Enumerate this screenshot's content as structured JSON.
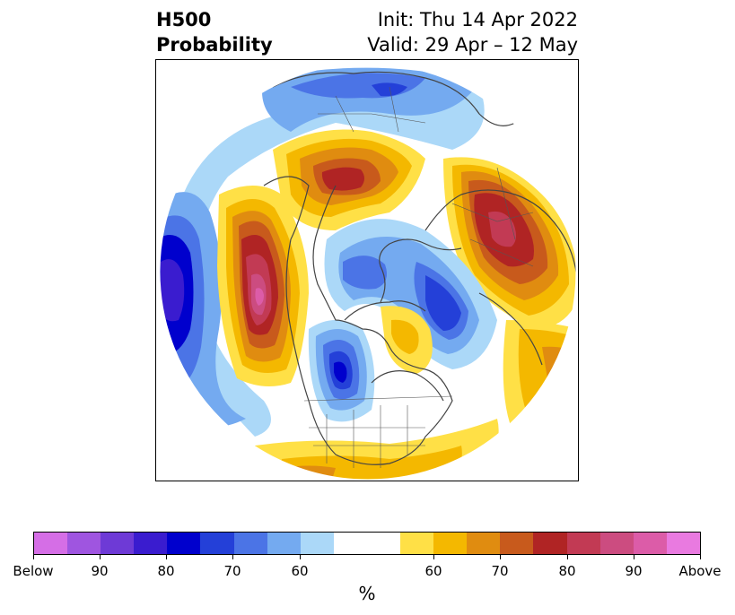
{
  "title": {
    "left_line1": "H500",
    "left_line2": "Probability",
    "right_line1": "Init: Thu 14 Apr 2022",
    "right_line2": "Valid: 29 Apr – 12 May"
  },
  "colorbar": {
    "colors": [
      "#d56ee6",
      "#9f55e0",
      "#6e3ad6",
      "#3a1ccf",
      "#0000cd",
      "#2440d8",
      "#4b74e6",
      "#74aaf0",
      "#abd8f8",
      "#ffffff",
      "#ffe046",
      "#f4b800",
      "#e08c10",
      "#c85a1c",
      "#b02424",
      "#c23a54",
      "#cc4c80",
      "#dc5ca8",
      "#e97ae0"
    ],
    "tick_labels": [
      "Below",
      "90",
      "80",
      "70",
      "60",
      "60",
      "70",
      "80",
      "90",
      "Above"
    ],
    "units": "%"
  },
  "map": {
    "projection": "polar stereographic (north pole)",
    "features": [
      "coastlines",
      "country borders",
      "US state borders"
    ]
  }
}
